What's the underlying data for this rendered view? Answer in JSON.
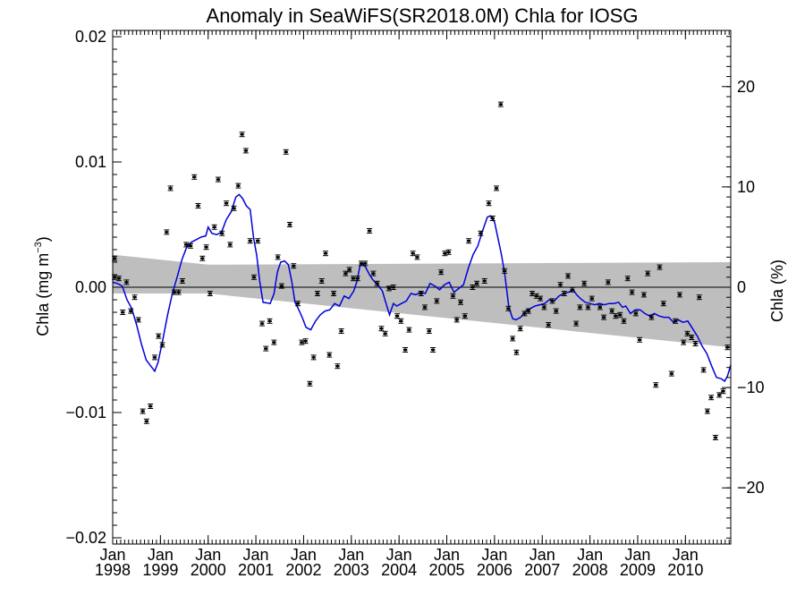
{
  "chart_data": {
    "type": "line",
    "title": "Anomaly in SeaWiFS(SR2018.0M) Chla for IOSG",
    "ylabel_left": "Chla (mg m",
    "ylabel_left_sup": "−3",
    "ylabel_left_close": ")",
    "ylabel_right": "Chla (%)",
    "xlim": [
      1998.0,
      2010.95
    ],
    "ylim": [
      -0.0205,
      0.0205
    ],
    "ylim_right": [
      -25.6,
      25.6
    ],
    "x_ticks": [
      {
        "x": 1998,
        "month": "Jan",
        "year": "1998"
      },
      {
        "x": 1999,
        "month": "Jan",
        "year": "1999"
      },
      {
        "x": 2000,
        "month": "Jan",
        "year": "2000"
      },
      {
        "x": 2001,
        "month": "Jan",
        "year": "2001"
      },
      {
        "x": 2002,
        "month": "Jan",
        "year": "2002"
      },
      {
        "x": 2003,
        "month": "Jan",
        "year": "2003"
      },
      {
        "x": 2004,
        "month": "Jan",
        "year": "2004"
      },
      {
        "x": 2005,
        "month": "Jan",
        "year": "2005"
      },
      {
        "x": 2006,
        "month": "Jan",
        "year": "2006"
      },
      {
        "x": 2007,
        "month": "Jan",
        "year": "2007"
      },
      {
        "x": 2008,
        "month": "Jan",
        "year": "2008"
      },
      {
        "x": 2009,
        "month": "Jan",
        "year": "2009"
      },
      {
        "x": 2010,
        "month": "Jan",
        "year": "2010"
      }
    ],
    "y_ticks_left": [
      {
        "v": 0.02,
        "label": "0.02"
      },
      {
        "v": 0.01,
        "label": "0.01"
      },
      {
        "v": 0.0,
        "label": "0.00"
      },
      {
        "v": -0.01,
        "label": "−0.01"
      },
      {
        "v": -0.02,
        "label": "−0.02"
      }
    ],
    "y_ticks_right": [
      {
        "v": 20,
        "label": "20"
      },
      {
        "v": 10,
        "label": "10"
      },
      {
        "v": 0,
        "label": "0"
      },
      {
        "v": -10,
        "label": "−10"
      },
      {
        "v": -20,
        "label": "−20"
      }
    ],
    "band": {
      "x": [
        1998.0,
        2000.0,
        2010.95
      ],
      "upper": [
        0.0026,
        0.0018,
        0.002
      ],
      "lower": [
        -0.0005,
        -0.0005,
        -0.0048
      ]
    },
    "zero_line": 0,
    "series": [
      {
        "color": "#0000dd",
        "points": [
          [
            1998.0,
            0.0004
          ],
          [
            1998.1,
            0.0003
          ],
          [
            1998.2,
            0.0001
          ],
          [
            1998.3,
            -0.001
          ],
          [
            1998.4,
            -0.0017
          ],
          [
            1998.5,
            -0.003
          ],
          [
            1998.6,
            -0.0045
          ],
          [
            1998.7,
            -0.0058
          ],
          [
            1998.8,
            -0.0063
          ],
          [
            1998.88,
            -0.0067
          ],
          [
            1998.95,
            -0.006
          ],
          [
            1999.05,
            -0.0042
          ],
          [
            1999.15,
            -0.0022
          ],
          [
            1999.25,
            -0.0005
          ],
          [
            1999.35,
            0.0008
          ],
          [
            1999.45,
            0.0022
          ],
          [
            1999.55,
            0.0032
          ],
          [
            1999.65,
            0.0036
          ],
          [
            1999.75,
            0.0038
          ],
          [
            1999.85,
            0.004
          ],
          [
            1999.95,
            0.0041
          ],
          [
            2000.0,
            0.0048
          ],
          [
            2000.08,
            0.0043
          ],
          [
            2000.18,
            0.0042
          ],
          [
            2000.28,
            0.0044
          ],
          [
            2000.38,
            0.0054
          ],
          [
            2000.48,
            0.006
          ],
          [
            2000.58,
            0.0072
          ],
          [
            2000.65,
            0.0074
          ],
          [
            2000.72,
            0.0071
          ],
          [
            2000.8,
            0.0065
          ],
          [
            2000.88,
            0.0062
          ],
          [
            2000.95,
            0.004
          ],
          [
            2001.02,
            0.0025
          ],
          [
            2001.08,
            0.0005
          ],
          [
            2001.15,
            -0.0012
          ],
          [
            2001.3,
            -0.0013
          ],
          [
            2001.38,
            -0.0005
          ],
          [
            2001.45,
            0.0012
          ],
          [
            2001.52,
            0.002
          ],
          [
            2001.6,
            0.0021
          ],
          [
            2001.68,
            0.0018
          ],
          [
            2001.75,
            0.0005
          ],
          [
            2001.82,
            -0.0012
          ],
          [
            2001.9,
            -0.0018
          ],
          [
            2001.98,
            -0.0025
          ],
          [
            2002.05,
            -0.0032
          ],
          [
            2002.15,
            -0.0034
          ],
          [
            2002.25,
            -0.0027
          ],
          [
            2002.35,
            -0.0022
          ],
          [
            2002.45,
            -0.0019
          ],
          [
            2002.55,
            -0.0018
          ],
          [
            2002.65,
            -0.0013
          ],
          [
            2002.75,
            -0.0015
          ],
          [
            2002.85,
            -0.0007
          ],
          [
            2002.95,
            -0.0009
          ],
          [
            2003.05,
            -0.0003
          ],
          [
            2003.12,
            0.0005
          ],
          [
            2003.18,
            0.0017
          ],
          [
            2003.22,
            0.0019
          ],
          [
            2003.3,
            0.0016
          ],
          [
            2003.38,
            0.001
          ],
          [
            2003.45,
            0.0006
          ],
          [
            2003.55,
            0.0002
          ],
          [
            2003.65,
            -0.0003
          ],
          [
            2003.72,
            -0.0012
          ],
          [
            2003.8,
            -0.0022
          ],
          [
            2003.88,
            -0.0013
          ],
          [
            2003.95,
            -0.0015
          ],
          [
            2004.05,
            -0.0013
          ],
          [
            2004.15,
            -0.0011
          ],
          [
            2004.25,
            -0.0005
          ],
          [
            2004.35,
            -0.0006
          ],
          [
            2004.45,
            -0.0004
          ],
          [
            2004.55,
            -0.0005
          ],
          [
            2004.65,
            0.0003
          ],
          [
            2004.75,
            0.0001
          ],
          [
            2004.85,
            -0.0002
          ],
          [
            2004.95,
            0.0002
          ],
          [
            2005.05,
            0.0004
          ],
          [
            2005.15,
            -0.0004
          ],
          [
            2005.25,
            -0.0001
          ],
          [
            2005.35,
            0.0002
          ],
          [
            2005.45,
            0.0015
          ],
          [
            2005.55,
            0.0026
          ],
          [
            2005.65,
            0.0033
          ],
          [
            2005.75,
            0.0045
          ],
          [
            2005.85,
            0.0056
          ],
          [
            2005.92,
            0.0057
          ],
          [
            2006.0,
            0.0052
          ],
          [
            2006.08,
            0.0038
          ],
          [
            2006.15,
            0.0025
          ],
          [
            2006.22,
            0.0009
          ],
          [
            2006.3,
            -0.0016
          ],
          [
            2006.38,
            -0.0025
          ],
          [
            2006.45,
            -0.0026
          ],
          [
            2006.55,
            -0.0024
          ],
          [
            2006.65,
            -0.0019
          ],
          [
            2006.75,
            -0.0017
          ],
          [
            2006.85,
            -0.0015
          ],
          [
            2006.95,
            -0.0014
          ],
          [
            2007.05,
            -0.0013
          ],
          [
            2007.15,
            -0.001
          ],
          [
            2007.25,
            -0.0011
          ],
          [
            2007.35,
            -0.0007
          ],
          [
            2007.45,
            -0.0005
          ],
          [
            2007.55,
            -0.0004
          ],
          [
            2007.65,
            -0.0002
          ],
          [
            2007.72,
            -0.0006
          ],
          [
            2007.8,
            -0.0009
          ],
          [
            2007.9,
            -0.0012
          ],
          [
            2008.0,
            -0.0013
          ],
          [
            2008.1,
            -0.0014
          ],
          [
            2008.2,
            -0.0013
          ],
          [
            2008.3,
            -0.0014
          ],
          [
            2008.4,
            -0.0013
          ],
          [
            2008.5,
            -0.0013
          ],
          [
            2008.6,
            -0.0012
          ],
          [
            2008.68,
            -0.0016
          ],
          [
            2008.75,
            -0.0015
          ],
          [
            2008.85,
            -0.0021
          ],
          [
            2008.95,
            -0.0018
          ],
          [
            2009.05,
            -0.0018
          ],
          [
            2009.15,
            -0.0021
          ],
          [
            2009.25,
            -0.0023
          ],
          [
            2009.35,
            -0.0021
          ],
          [
            2009.45,
            -0.0023
          ],
          [
            2009.55,
            -0.0024
          ],
          [
            2009.65,
            -0.0024
          ],
          [
            2009.75,
            -0.0028
          ],
          [
            2009.85,
            -0.0026
          ],
          [
            2009.95,
            -0.0028
          ],
          [
            2010.05,
            -0.0027
          ],
          [
            2010.15,
            -0.0033
          ],
          [
            2010.25,
            -0.0039
          ],
          [
            2010.35,
            -0.0047
          ],
          [
            2010.45,
            -0.0053
          ],
          [
            2010.55,
            -0.0063
          ],
          [
            2010.65,
            -0.0072
          ],
          [
            2010.75,
            -0.0073
          ],
          [
            2010.82,
            -0.0075
          ],
          [
            2010.88,
            -0.0071
          ],
          [
            2010.95,
            -0.0062
          ]
        ]
      }
    ],
    "error_bar_points": [
      [
        1998.04,
        0.0023
      ],
      [
        1998.04,
        0.0008
      ],
      [
        1998.13,
        0.0007
      ],
      [
        1998.21,
        -0.002
      ],
      [
        1998.29,
        0.0004
      ],
      [
        1998.38,
        -0.0019
      ],
      [
        1998.46,
        -0.0008
      ],
      [
        1998.54,
        -0.0026
      ],
      [
        1998.63,
        -0.0099
      ],
      [
        1998.71,
        -0.0107
      ],
      [
        1998.79,
        -0.0095
      ],
      [
        1998.88,
        -0.0056
      ],
      [
        1998.96,
        -0.0039
      ],
      [
        1999.04,
        -0.0046
      ],
      [
        1999.13,
        0.0044
      ],
      [
        1999.21,
        0.0079
      ],
      [
        1999.29,
        -0.0004
      ],
      [
        1999.38,
        -0.0004
      ],
      [
        1999.46,
        0.0005
      ],
      [
        1999.54,
        0.0034
      ],
      [
        1999.63,
        0.0033
      ],
      [
        1999.71,
        0.0088
      ],
      [
        1999.79,
        0.0065
      ],
      [
        1999.88,
        0.0023
      ],
      [
        1999.96,
        0.0032
      ],
      [
        2000.04,
        -0.0005
      ],
      [
        2000.13,
        0.0048
      ],
      [
        2000.21,
        0.0086
      ],
      [
        2000.29,
        0.0043
      ],
      [
        2000.38,
        0.0067
      ],
      [
        2000.46,
        0.0034
      ],
      [
        2000.54,
        0.0063
      ],
      [
        2000.63,
        0.0081
      ],
      [
        2000.71,
        0.0122
      ],
      [
        2000.79,
        0.0109
      ],
      [
        2000.88,
        0.0037
      ],
      [
        2000.96,
        0.0008
      ],
      [
        2001.04,
        0.0037
      ],
      [
        2001.13,
        -0.0029
      ],
      [
        2001.21,
        -0.0049
      ],
      [
        2001.29,
        -0.0027
      ],
      [
        2001.38,
        -0.0044
      ],
      [
        2001.46,
        0.0024
      ],
      [
        2001.54,
        0.0001
      ],
      [
        2001.63,
        0.0108
      ],
      [
        2001.71,
        0.005
      ],
      [
        2001.79,
        0.0017
      ],
      [
        2001.88,
        -0.0013
      ],
      [
        2001.96,
        -0.0044
      ],
      [
        2002.04,
        -0.0043
      ],
      [
        2002.13,
        -0.0077
      ],
      [
        2002.21,
        -0.0056
      ],
      [
        2002.29,
        -0.0005
      ],
      [
        2002.38,
        0.0005
      ],
      [
        2002.46,
        0.0027
      ],
      [
        2002.54,
        -0.0054
      ],
      [
        2002.63,
        -0.0005
      ],
      [
        2002.71,
        -0.0063
      ],
      [
        2002.79,
        -0.0035
      ],
      [
        2002.88,
        0.0011
      ],
      [
        2002.96,
        0.0014
      ],
      [
        2003.04,
        0.0007
      ],
      [
        2003.13,
        0.0007
      ],
      [
        2003.21,
        0.0019
      ],
      [
        2003.29,
        0.0019
      ],
      [
        2003.38,
        0.0045
      ],
      [
        2003.46,
        0.0011
      ],
      [
        2003.54,
        0.0003
      ],
      [
        2003.63,
        -0.0033
      ],
      [
        2003.71,
        -0.0037
      ],
      [
        2003.79,
        -0.0001
      ],
      [
        2003.88,
        0.0
      ],
      [
        2003.96,
        -0.0023
      ],
      [
        2004.04,
        -0.0027
      ],
      [
        2004.13,
        -0.005
      ],
      [
        2004.21,
        -0.0034
      ],
      [
        2004.29,
        0.0027
      ],
      [
        2004.38,
        0.0024
      ],
      [
        2004.46,
        -0.0005
      ],
      [
        2004.54,
        -0.0016
      ],
      [
        2004.63,
        -0.0035
      ],
      [
        2004.71,
        -0.005
      ],
      [
        2004.79,
        -0.0011
      ],
      [
        2004.88,
        0.0012
      ],
      [
        2004.96,
        0.0027
      ],
      [
        2005.04,
        0.0028
      ],
      [
        2005.13,
        -0.0007
      ],
      [
        2005.21,
        -0.0026
      ],
      [
        2005.29,
        -0.0012
      ],
      [
        2005.38,
        -0.0023
      ],
      [
        2005.46,
        0.0037
      ],
      [
        2005.54,
        0.0
      ],
      [
        2005.63,
        0.0003
      ],
      [
        2005.71,
        0.0043
      ],
      [
        2005.79,
        0.0005
      ],
      [
        2005.88,
        0.0067
      ],
      [
        2005.96,
        0.0055
      ],
      [
        2006.04,
        0.0079
      ],
      [
        2006.13,
        0.0146
      ],
      [
        2006.21,
        0.0013
      ],
      [
        2006.29,
        -0.0017
      ],
      [
        2006.38,
        -0.0041
      ],
      [
        2006.46,
        -0.0052
      ],
      [
        2006.54,
        -0.0033
      ],
      [
        2006.63,
        -0.0021
      ],
      [
        2006.71,
        -0.0019
      ],
      [
        2006.79,
        -0.0005
      ],
      [
        2006.88,
        -0.0007
      ],
      [
        2006.96,
        -0.0009
      ],
      [
        2007.04,
        -0.0016
      ],
      [
        2007.13,
        -0.003
      ],
      [
        2007.21,
        -0.0011
      ],
      [
        2007.29,
        -0.0019
      ],
      [
        2007.38,
        0.0002
      ],
      [
        2007.46,
        -0.0005
      ],
      [
        2007.54,
        0.0009
      ],
      [
        2007.63,
        -0.0002
      ],
      [
        2007.71,
        -0.0029
      ],
      [
        2007.79,
        -0.0016
      ],
      [
        2007.88,
        0.0003
      ],
      [
        2007.96,
        -0.0016
      ],
      [
        2008.04,
        -0.0009
      ],
      [
        2008.21,
        -0.0016
      ],
      [
        2008.29,
        -0.0024
      ],
      [
        2008.38,
        0.0004
      ],
      [
        2008.46,
        -0.0019
      ],
      [
        2008.54,
        -0.0023
      ],
      [
        2008.63,
        -0.0022
      ],
      [
        2008.71,
        -0.0027
      ],
      [
        2008.79,
        0.0007
      ],
      [
        2008.88,
        -0.0004
      ],
      [
        2008.96,
        -0.0021
      ],
      [
        2009.04,
        -0.0042
      ],
      [
        2009.13,
        -0.0006
      ],
      [
        2009.21,
        0.0011
      ],
      [
        2009.29,
        -0.0024
      ],
      [
        2009.38,
        -0.0078
      ],
      [
        2009.46,
        0.0016
      ],
      [
        2009.54,
        -0.0013
      ],
      [
        2009.71,
        -0.0069
      ],
      [
        2009.79,
        -0.0027
      ],
      [
        2009.88,
        -0.0006
      ],
      [
        2009.96,
        -0.0044
      ],
      [
        2010.04,
        -0.0037
      ],
      [
        2010.13,
        -0.004
      ],
      [
        2010.21,
        -0.0045
      ],
      [
        2010.29,
        -0.0008
      ],
      [
        2010.38,
        -0.0066
      ],
      [
        2010.46,
        -0.0099
      ],
      [
        2010.54,
        -0.0088
      ],
      [
        2010.63,
        -0.012
      ],
      [
        2010.71,
        -0.0086
      ],
      [
        2010.79,
        -0.0083
      ],
      [
        2010.88,
        -0.0048
      ]
    ]
  }
}
